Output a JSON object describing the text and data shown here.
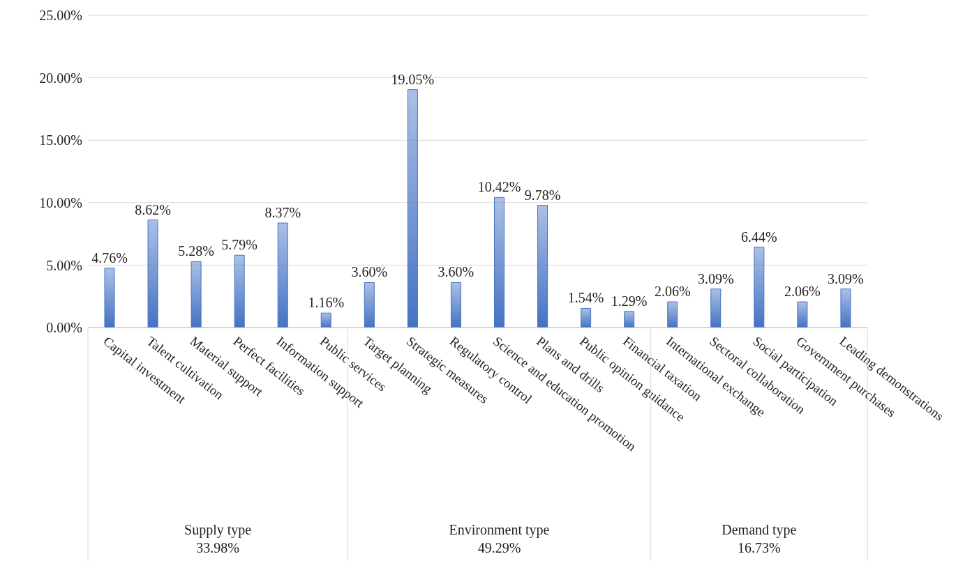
{
  "chart_data": {
    "type": "bar",
    "categories": [
      "Capital investment",
      "Talent cultivation",
      "Material support",
      "Perfect facilities",
      "Information support",
      "Public services",
      "Target planning",
      "Strategic measures",
      "Regulatory control",
      "Science and education promotion",
      "Plans and drills",
      "Public opinion guidance",
      "Financial taxation",
      "International exchange",
      "Sectoral collaboration",
      "Social participation",
      "Government purchases",
      "Leading demonstrations"
    ],
    "values": [
      4.76,
      8.62,
      5.28,
      5.79,
      8.37,
      1.16,
      3.6,
      19.05,
      3.6,
      10.42,
      9.78,
      1.54,
      1.29,
      2.06,
      3.09,
      6.44,
      2.06,
      3.09
    ],
    "value_labels": [
      "4.76%",
      "8.62%",
      "5.28%",
      "5.79%",
      "8.37%",
      "1.16%",
      "3.60%",
      "19.05%",
      "3.60%",
      "10.42%",
      "9.78%",
      "1.54%",
      "1.29%",
      "2.06%",
      "3.09%",
      "6.44%",
      "2.06%",
      "3.09%"
    ],
    "color": "#4472c4",
    "ylim": [
      0,
      25
    ],
    "yticks": [
      {
        "value": 0,
        "label": "0.00%"
      },
      {
        "value": 5,
        "label": "5.00%"
      },
      {
        "value": 10,
        "label": "10.00%"
      },
      {
        "value": 15,
        "label": "15.00%"
      },
      {
        "value": 20,
        "label": "20.00%"
      },
      {
        "value": 25,
        "label": "25.00%"
      }
    ],
    "grid": "y",
    "annotations": [
      "Supply type\n33.98%",
      "Environment type\n49.29%",
      "Demand type\n16.73%"
    ]
  }
}
